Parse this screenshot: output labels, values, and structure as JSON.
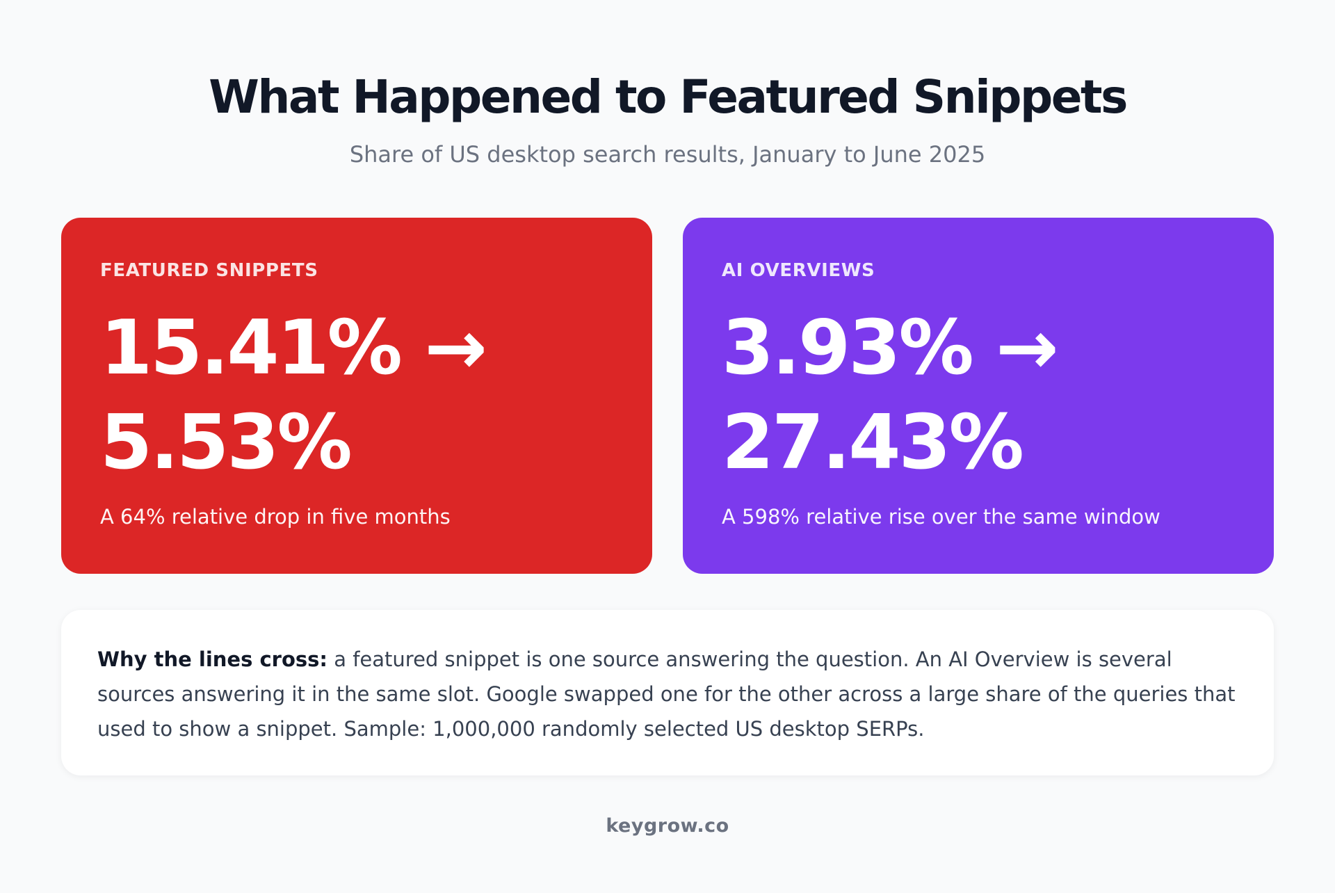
{
  "header": {
    "title": "What Happened to Featured Snippets",
    "subtitle": "Share of US desktop search results, January to June 2025"
  },
  "cards": [
    {
      "label": "FEATURED SNIPPETS",
      "from": "15.41%",
      "arrow": "→",
      "to": "5.53%",
      "caption": "A 64% relative drop in five months",
      "color": "#dc2626"
    },
    {
      "label": "AI OVERVIEWS",
      "from": "3.93%",
      "arrow": "→",
      "to": "27.43%",
      "caption": "A 598% relative rise over the same window",
      "color": "#7c3aed"
    }
  ],
  "note": {
    "lead": "Why the lines cross:",
    "body": " a featured snippet is one source answering the question. An AI Overview is several sources answering it in the same slot. Google swapped one for the other across a large share of the queries that used to show a snippet. Sample: 1,000,000 randomly selected US desktop SERPs."
  },
  "footer": {
    "brand": "keygrow.co"
  }
}
